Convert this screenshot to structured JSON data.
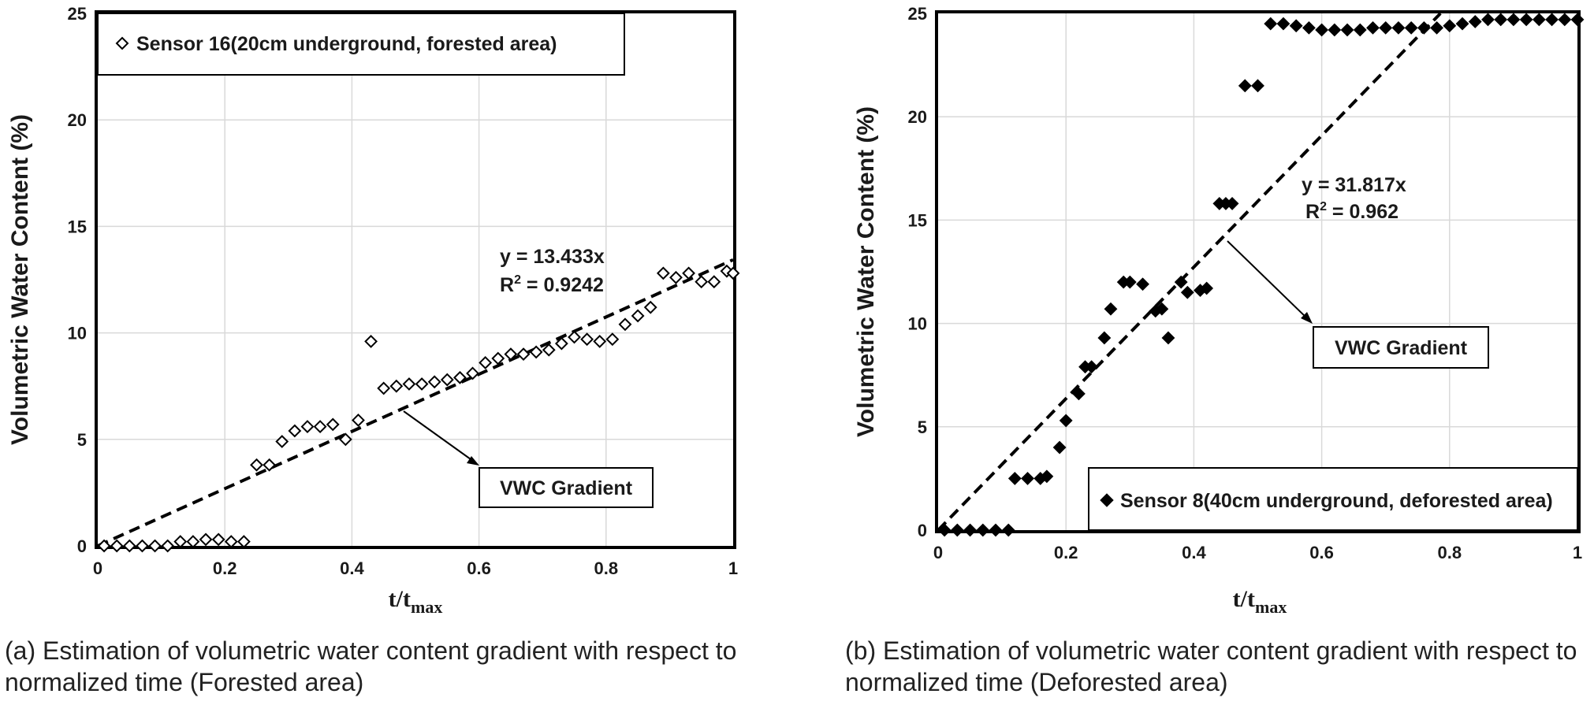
{
  "chart_data": [
    {
      "type": "scatter",
      "ylabel": "Volumetric Water Content (%)",
      "xlabel": "t/t",
      "xlabel_sub": "max",
      "xlim": [
        0,
        1
      ],
      "ylim": [
        0,
        25
      ],
      "xticks": [
        "0",
        "0.2",
        "0.4",
        "0.6",
        "0.8",
        "1"
      ],
      "yticks": [
        "0",
        "5",
        "10",
        "15",
        "20",
        "25"
      ],
      "grid": true,
      "marker": "hollow-diamond",
      "legend": {
        "label": "Sensor 16(20cm underground, forested area)",
        "position": "top-left"
      },
      "series": [
        {
          "name": "Sensor 16(20cm underground, forested area)",
          "x": [
            0.01,
            0.03,
            0.05,
            0.07,
            0.09,
            0.11,
            0.13,
            0.15,
            0.17,
            0.19,
            0.21,
            0.23,
            0.25,
            0.27,
            0.29,
            0.31,
            0.33,
            0.35,
            0.37,
            0.39,
            0.41,
            0.43,
            0.45,
            0.47,
            0.49,
            0.51,
            0.53,
            0.55,
            0.57,
            0.59,
            0.61,
            0.63,
            0.65,
            0.67,
            0.69,
            0.71,
            0.73,
            0.75,
            0.77,
            0.79,
            0.81,
            0.83,
            0.85,
            0.87,
            0.89,
            0.91,
            0.93,
            0.95,
            0.97,
            0.99,
            1.0
          ],
          "y": [
            0,
            0,
            0,
            0,
            0,
            0,
            0.2,
            0.2,
            0.3,
            0.3,
            0.2,
            0.2,
            3.8,
            3.8,
            4.9,
            5.4,
            5.6,
            5.6,
            5.7,
            5.0,
            5.9,
            9.6,
            7.4,
            7.5,
            7.6,
            7.6,
            7.7,
            7.8,
            7.9,
            8.1,
            8.6,
            8.8,
            9.0,
            9.0,
            9.1,
            9.2,
            9.5,
            9.8,
            9.7,
            9.6,
            9.7,
            10.4,
            10.8,
            11.2,
            12.8,
            12.6,
            12.8,
            12.4,
            12.4,
            12.9,
            12.8
          ]
        }
      ],
      "trendline": {
        "slope": 13.433,
        "equation": "y = 13.433x",
        "r2_prefix": "R",
        "r2_sup": "2",
        "r2_value": " = 0.9242"
      },
      "annotation": "VWC Gradient"
    },
    {
      "type": "scatter",
      "ylabel": "Volumetric Water Content (%)",
      "xlabel": "t/t",
      "xlabel_sub": "max",
      "xlim": [
        0,
        1
      ],
      "ylim": [
        0,
        25
      ],
      "xticks": [
        "0",
        "0.2",
        "0.4",
        "0.6",
        "0.8",
        "1"
      ],
      "yticks": [
        "0",
        "5",
        "10",
        "15",
        "20",
        "25"
      ],
      "grid": true,
      "marker": "filled-diamond",
      "legend": {
        "label": "Sensor 8(40cm underground, deforested area)",
        "position": "bottom-right"
      },
      "series": [
        {
          "name": "Sensor 8(40cm underground, deforested area)",
          "x": [
            0.01,
            0.03,
            0.05,
            0.07,
            0.09,
            0.11,
            0.12,
            0.14,
            0.16,
            0.17,
            0.19,
            0.2,
            0.22,
            0.23,
            0.24,
            0.26,
            0.27,
            0.29,
            0.3,
            0.32,
            0.34,
            0.35,
            0.36,
            0.38,
            0.39,
            0.41,
            0.42,
            0.44,
            0.45,
            0.46,
            0.48,
            0.5,
            0.52,
            0.54,
            0.56,
            0.58,
            0.6,
            0.62,
            0.64,
            0.66,
            0.68,
            0.7,
            0.72,
            0.74,
            0.76,
            0.78,
            0.8,
            0.82,
            0.84,
            0.86,
            0.88,
            0.9,
            0.92,
            0.94,
            0.96,
            0.98,
            1.0
          ],
          "y": [
            0,
            0,
            0,
            0,
            0,
            0,
            2.5,
            2.5,
            2.5,
            2.6,
            4.0,
            5.3,
            6.6,
            7.9,
            7.9,
            9.3,
            10.7,
            12.0,
            12.0,
            11.9,
            10.6,
            10.7,
            9.3,
            12.0,
            11.5,
            11.6,
            11.7,
            15.8,
            15.8,
            15.8,
            21.5,
            21.5,
            24.5,
            24.5,
            24.4,
            24.3,
            24.2,
            24.2,
            24.2,
            24.2,
            24.3,
            24.3,
            24.3,
            24.3,
            24.3,
            24.3,
            24.4,
            24.5,
            24.6,
            24.7,
            24.7,
            24.7,
            24.7,
            24.7,
            24.7,
            24.7,
            24.7
          ]
        }
      ],
      "trendline": {
        "slope": 31.817,
        "equation": "y = 31.817x",
        "r2_prefix": "R",
        "r2_sup": "2",
        "r2_value": " = 0.962"
      },
      "annotation": "VWC Gradient"
    }
  ],
  "captions": [
    {
      "tag": "(a)",
      "text": "Estimation of volumetric water content gradient with respect to normalized time (Forested area)"
    },
    {
      "tag": "(b)",
      "text": "Estimation of volumetric water content gradient with respect to normalized time (Deforested area)"
    }
  ],
  "colors": {
    "axis": "#000000",
    "grid": "#d9d9d9",
    "marker": "#000000",
    "trend": "#000000"
  }
}
